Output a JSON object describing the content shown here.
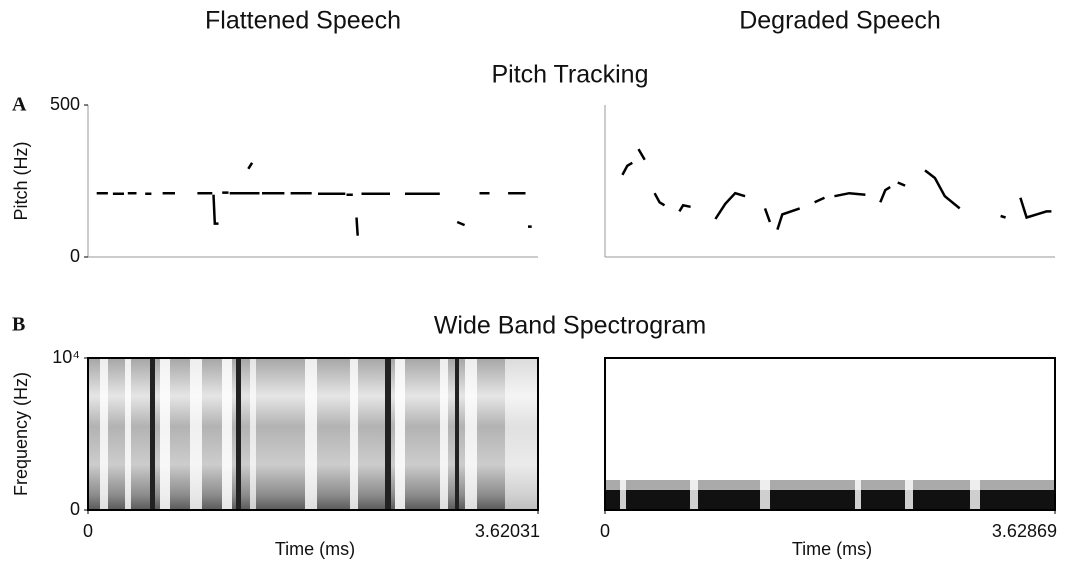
{
  "columns": [
    "Flattened Speech",
    "Degraded Speech"
  ],
  "sections": [
    {
      "label": "A",
      "title": "Pitch Tracking"
    },
    {
      "label": "B",
      "title": "Wide Band Spectrogram"
    }
  ],
  "chart_data": [
    {
      "type": "line",
      "ylabel": "Pitch (Hz)",
      "xlim": [
        0,
        3.62031
      ],
      "ylim": [
        0,
        500
      ],
      "yticks": [
        0,
        500
      ],
      "color": "#000000",
      "x": [
        0.07,
        0.16,
        null,
        0.2,
        0.29,
        null,
        0.32,
        0.39,
        null,
        0.46,
        0.51,
        null,
        0.6,
        0.7,
        null,
        0.88,
        1.0,
        null,
        1.01,
        1.02,
        1.05,
        null,
        1.08,
        1.13,
        null,
        1.14,
        1.38,
        null,
        1.29,
        1.32,
        null,
        1.4,
        1.58,
        null,
        1.63,
        1.8,
        null,
        1.85,
        2.07,
        null,
        2.08,
        2.13,
        null,
        2.16,
        2.17,
        null,
        2.2,
        2.43,
        null,
        2.55,
        2.83,
        null,
        2.97,
        3.03,
        null,
        3.15,
        3.23,
        null,
        3.38,
        3.52,
        null,
        3.54,
        3.57
      ],
      "values": [
        210,
        210,
        null,
        208,
        208,
        null,
        210,
        210,
        null,
        208,
        208,
        null,
        210,
        210,
        null,
        210,
        210,
        null,
        205,
        110,
        110,
        null,
        212,
        212,
        null,
        210,
        210,
        null,
        290,
        310,
        null,
        210,
        210,
        null,
        210,
        210,
        null,
        208,
        208,
        null,
        205,
        205,
        null,
        130,
        70,
        null,
        208,
        208,
        null,
        208,
        208,
        null,
        115,
        105,
        null,
        210,
        210,
        null,
        210,
        210,
        null,
        100,
        100
      ]
    },
    {
      "type": "line",
      "xlim": [
        0,
        3.62869
      ],
      "ylim": [
        0,
        500
      ],
      "color": "#000000",
      "x": [
        0.14,
        0.18,
        0.22,
        null,
        0.27,
        0.32,
        null,
        0.4,
        0.44,
        0.48,
        null,
        0.6,
        0.63,
        0.69,
        null,
        0.89,
        0.97,
        1.05,
        1.13,
        null,
        1.29,
        1.33,
        null,
        1.39,
        1.43,
        1.57,
        null,
        1.69,
        1.77,
        null,
        1.85,
        1.97,
        2.1,
        null,
        2.22,
        2.26,
        2.3,
        null,
        2.36,
        2.42,
        null,
        2.58,
        2.66,
        2.74,
        2.86,
        null,
        3.19,
        3.23,
        null,
        3.35,
        3.4,
        3.48,
        3.56,
        3.6
      ],
      "values": [
        270,
        300,
        310,
        null,
        355,
        320,
        null,
        210,
        180,
        170,
        null,
        150,
        170,
        165,
        null,
        125,
        175,
        210,
        200,
        null,
        160,
        115,
        null,
        90,
        140,
        160,
        null,
        180,
        195,
        null,
        200,
        210,
        205,
        null,
        180,
        220,
        230,
        null,
        245,
        235,
        null,
        285,
        260,
        200,
        160,
        null,
        135,
        130,
        null,
        195,
        130,
        140,
        150,
        150
      ]
    },
    {
      "type": "spectrogram",
      "ylabel": "Frequency (Hz)",
      "xlabel": "Time (ms)",
      "xlim": [
        0,
        3.62031
      ],
      "xticks": [
        0,
        3.62031
      ],
      "ylim": [
        0,
        10000
      ],
      "yticks": [
        0,
        {
          "value": 10000,
          "label": "10⁴"
        }
      ]
    },
    {
      "type": "spectrogram",
      "xlabel": "Time (ms)",
      "xlim": [
        0,
        3.62869
      ],
      "xticks": [
        0,
        3.62869
      ]
    }
  ]
}
